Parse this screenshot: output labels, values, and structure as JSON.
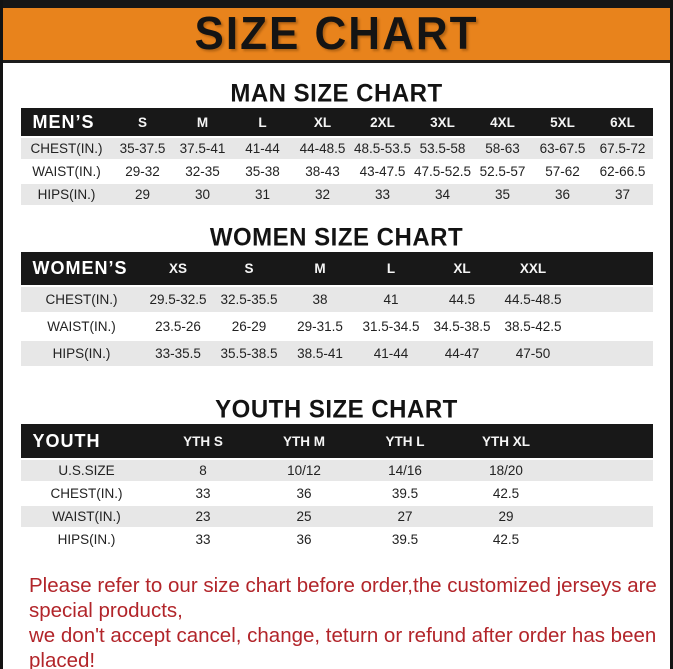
{
  "banner": {
    "title": "SIZE CHART",
    "bg_color": "#e8831c",
    "text_color": "#141414"
  },
  "colors": {
    "table_header_bg": "#181818",
    "shaded_row_bg": "#e7e7e7",
    "footer_text": "#b2252a"
  },
  "sections": {
    "men_heading": "MAN SIZE CHART",
    "women_heading": "WOMEN SIZE CHART",
    "youth_heading": "YOUTH SIZE CHART"
  },
  "tables": {
    "men": {
      "label": "MEN’S",
      "columns": [
        "S",
        "M",
        "L",
        "XL",
        "2XL",
        "3XL",
        "4XL",
        "5XL",
        "6XL"
      ],
      "rows": [
        {
          "label": "CHEST(IN.)",
          "shaded": true,
          "values": [
            "35-37.5",
            "37.5-41",
            "41-44",
            "44-48.5",
            "48.5-53.5",
            "53.5-58",
            "58-63",
            "63-67.5",
            "67.5-72"
          ]
        },
        {
          "label": "WAIST(IN.)",
          "shaded": false,
          "values": [
            "29-32",
            "32-35",
            "35-38",
            "38-43",
            "43-47.5",
            "47.5-52.5",
            "52.5-57",
            "57-62",
            "62-66.5"
          ]
        },
        {
          "label": "HIPS(IN.)",
          "shaded": true,
          "values": [
            "29",
            "30",
            "31",
            "32",
            "33",
            "34",
            "35",
            "36",
            "37"
          ]
        }
      ]
    },
    "women": {
      "label": "WOMEN’S",
      "columns": [
        "XS",
        "S",
        "M",
        "L",
        "XL",
        "XXL"
      ],
      "rows": [
        {
          "label": "CHEST(IN.)",
          "shaded": true,
          "values": [
            "29.5-32.5",
            "32.5-35.5",
            "38",
            "41",
            "44.5",
            "44.5-48.5"
          ]
        },
        {
          "label": "WAIST(IN.)",
          "shaded": false,
          "values": [
            "23.5-26",
            "26-29",
            "29-31.5",
            "31.5-34.5",
            "34.5-38.5",
            "38.5-42.5"
          ]
        },
        {
          "label": "HIPS(IN.)",
          "shaded": true,
          "values": [
            "33-35.5",
            "35.5-38.5",
            "38.5-41",
            "41-44",
            "44-47",
            "47-50"
          ]
        }
      ]
    },
    "youth": {
      "label": "YOUTH",
      "columns": [
        "YTH S",
        "YTH M",
        "YTH L",
        "YTH XL"
      ],
      "rows": [
        {
          "label": "U.S.SIZE",
          "shaded": true,
          "values": [
            "8",
            "10/12",
            "14/16",
            "18/20"
          ]
        },
        {
          "label": "CHEST(IN.)",
          "shaded": false,
          "values": [
            "33",
            "36",
            "39.5",
            "42.5"
          ]
        },
        {
          "label": "WAIST(IN.)",
          "shaded": true,
          "values": [
            "23",
            "25",
            "27",
            "29"
          ]
        },
        {
          "label": "HIPS(IN.)",
          "shaded": false,
          "values": [
            "33",
            "36",
            "39.5",
            "42.5"
          ]
        }
      ]
    }
  },
  "footer": {
    "line1": "Please refer to our size chart before order,the customized jerseys are special products,",
    "line2": "we don't accept cancel, change, teturn or refund after order has been placed!"
  }
}
